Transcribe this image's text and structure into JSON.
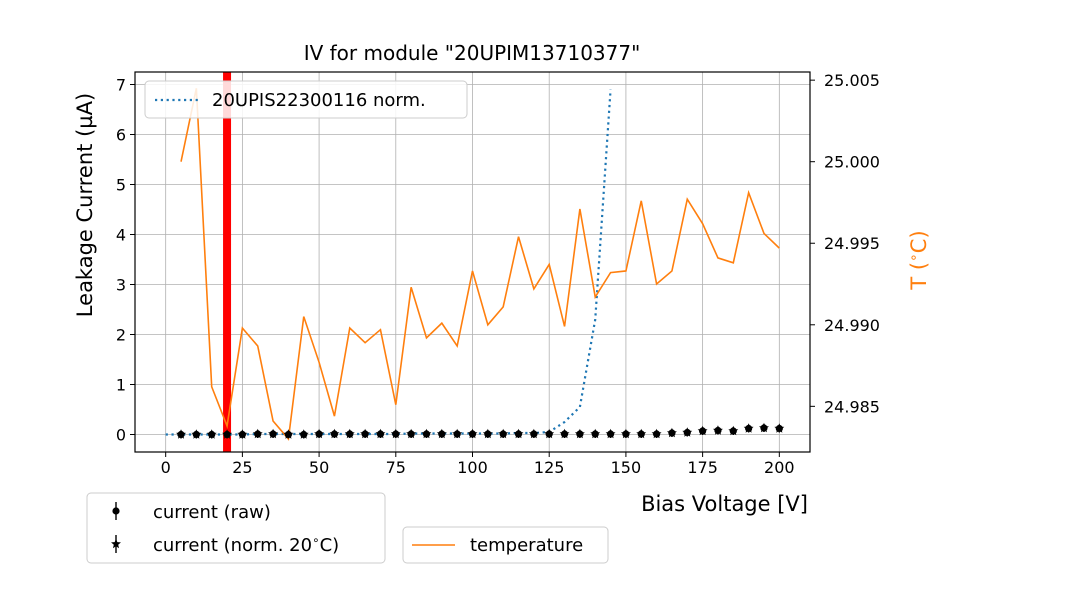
{
  "chart_data": {
    "type": "line",
    "title": "IV for module \"20UPIM13710377\"",
    "xlabel": "Bias Voltage [V]",
    "ylabel": "Leakage Current (µA)",
    "y2label": "T ($^\\circ$C)",
    "xlim": [
      -10,
      210
    ],
    "ylim": [
      -0.35,
      7.25
    ],
    "y2lim": [
      24.9822,
      25.0055
    ],
    "xticks": [
      0,
      25,
      50,
      75,
      100,
      125,
      150,
      175,
      200
    ],
    "yticks": [
      0,
      1,
      2,
      3,
      4,
      5,
      6,
      7
    ],
    "y2ticks": [
      24.985,
      24.99,
      24.995,
      25.0,
      25.005
    ],
    "y2tick_labels": [
      "24.985",
      "24.990",
      "24.995",
      "25.000",
      "25.005"
    ],
    "grid": true,
    "vline": {
      "x": 20,
      "color": "#ff0000"
    },
    "colors": {
      "reference": "#1f77b4",
      "temperature": "#ff7f0e",
      "measured": "#000000",
      "vline": "#ff0000"
    },
    "series": [
      {
        "name": "20UPIS22300116 norm.",
        "axis": "left",
        "style": "dotted",
        "x": [
          0,
          5,
          10,
          15,
          20,
          25,
          30,
          35,
          40,
          45,
          50,
          55,
          60,
          65,
          70,
          75,
          80,
          85,
          90,
          95,
          100,
          105,
          110,
          115,
          120,
          125,
          130,
          135,
          140,
          145
        ],
        "values": [
          0.0,
          0.0,
          0.0,
          0.0,
          0.0,
          0.0,
          0.01,
          0.01,
          0.01,
          0.01,
          0.01,
          0.01,
          0.01,
          0.01,
          0.01,
          0.01,
          0.02,
          0.02,
          0.02,
          0.02,
          0.02,
          0.02,
          0.02,
          0.03,
          0.03,
          0.05,
          0.25,
          0.55,
          2.3,
          6.9
        ]
      },
      {
        "name": "current (raw)",
        "axis": "left",
        "marker": "circle",
        "x": [
          5,
          10,
          15,
          20,
          25,
          30,
          35,
          40,
          45,
          50,
          55,
          60,
          65,
          70,
          75,
          80,
          85,
          90,
          95,
          100,
          105,
          110,
          115,
          120,
          125,
          130,
          135,
          140,
          145,
          150,
          155,
          160,
          165,
          170,
          175,
          180,
          185,
          190,
          195,
          200
        ],
        "values": [
          0.0,
          0.0,
          0.0,
          0.0,
          0.0,
          0.01,
          0.01,
          0.0,
          0.0,
          0.01,
          0.01,
          0.01,
          0.01,
          0.01,
          0.01,
          0.01,
          0.01,
          0.01,
          0.01,
          0.01,
          0.01,
          0.01,
          0.01,
          0.01,
          0.01,
          0.01,
          0.01,
          0.01,
          0.01,
          0.01,
          0.01,
          0.01,
          0.03,
          0.04,
          0.07,
          0.08,
          0.07,
          0.12,
          0.13,
          0.12
        ]
      },
      {
        "name": "current (norm. 20$^\\circ$C)",
        "axis": "left",
        "marker": "star",
        "x": [
          5,
          10,
          15,
          20,
          25,
          30,
          35,
          40,
          45,
          50,
          55,
          60,
          65,
          70,
          75,
          80,
          85,
          90,
          95,
          100,
          105,
          110,
          115,
          120,
          125,
          130,
          135,
          140,
          145,
          150,
          155,
          160,
          165,
          170,
          175,
          180,
          185,
          190,
          195,
          200
        ],
        "values": [
          0.0,
          0.0,
          0.0,
          0.0,
          0.0,
          0.01,
          0.01,
          0.0,
          0.0,
          0.01,
          0.01,
          0.01,
          0.01,
          0.01,
          0.01,
          0.01,
          0.01,
          0.01,
          0.01,
          0.01,
          0.01,
          0.01,
          0.01,
          0.01,
          0.01,
          0.01,
          0.01,
          0.01,
          0.01,
          0.01,
          0.01,
          0.01,
          0.03,
          0.04,
          0.07,
          0.08,
          0.07,
          0.12,
          0.13,
          0.12
        ]
      },
      {
        "name": "temperature",
        "axis": "right",
        "style": "solid",
        "x": [
          5,
          10,
          15,
          20,
          25,
          30,
          35,
          40,
          45,
          50,
          55,
          60,
          65,
          70,
          75,
          80,
          85,
          90,
          95,
          100,
          105,
          110,
          115,
          120,
          125,
          130,
          135,
          140,
          145,
          150,
          155,
          160,
          165,
          170,
          175,
          180,
          185,
          190,
          195,
          200
        ],
        "values": [
          25.0,
          25.0045,
          24.9862,
          24.9838,
          24.9898,
          24.9887,
          24.9841,
          24.983,
          24.9905,
          24.9877,
          24.9844,
          24.9898,
          24.9889,
          24.9897,
          24.9851,
          24.9923,
          24.9892,
          24.9901,
          24.9887,
          24.9933,
          24.99,
          24.9911,
          24.9954,
          24.9922,
          24.9937,
          24.9899,
          24.9971,
          24.9917,
          24.9932,
          24.9933,
          24.9976,
          24.9925,
          24.9933,
          24.9977,
          24.9962,
          24.9941,
          24.9938,
          24.9981,
          24.9956,
          24.9947
        ]
      }
    ]
  }
}
